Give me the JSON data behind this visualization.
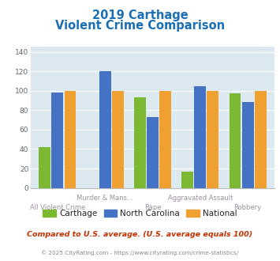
{
  "title_line1": "2019 Carthage",
  "title_line2": "Violent Crime Comparison",
  "categories": [
    "All Violent Crime",
    "Murder & Mans...",
    "Rape",
    "Aggravated Assault",
    "Robbery"
  ],
  "series": {
    "Carthage": [
      42,
      0,
      93,
      17,
      97
    ],
    "North Carolina": [
      98,
      120,
      73,
      105,
      88
    ],
    "National": [
      100,
      100,
      100,
      100,
      100
    ]
  },
  "colors": {
    "Carthage": "#7db832",
    "North Carolina": "#4472c4",
    "National": "#f0a030"
  },
  "ylim": [
    0,
    145
  ],
  "yticks": [
    0,
    20,
    40,
    60,
    80,
    100,
    120,
    140
  ],
  "plot_bg": "#dce9f0",
  "title_color": "#1a6fb5",
  "xlabel_color": "#9b8fa0",
  "legend_text_color": "#222222",
  "footer_text": "Compared to U.S. average. (U.S. average equals 100)",
  "copyright_text": "© 2025 CityRating.com - https://www.cityrating.com/crime-statistics/",
  "footer_color": "#c03000",
  "copyright_color": "#888888",
  "stagger_up": [
    1,
    3
  ],
  "stagger_down": [
    0,
    2,
    4
  ]
}
